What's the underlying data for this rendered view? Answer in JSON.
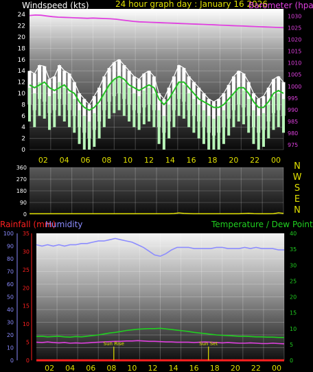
{
  "header": {
    "wind_title": "Windspeed (kts)",
    "graph_title": "24 hour graph day : January 16 2026",
    "baro_title": "Barometer (hpa)"
  },
  "colors": {
    "background": "#000000",
    "wind_gust": "#ffffff",
    "wind_speed": "#b8f5b8",
    "wind_avg": "#22c022",
    "barometer": "#e040e0",
    "direction": "#e0e000",
    "rain": "#ff2020",
    "humidity": "#8c8cff",
    "temperature": "#20d020",
    "dewpoint": "#e040e0",
    "sun": "#e0e000",
    "xtick": "#e0e000"
  },
  "chart_data": [
    {
      "id": "wind_baro",
      "type": "line",
      "title": "24 hour graph day : January 16 2026",
      "x_ticks": [
        "02",
        "04",
        "06",
        "08",
        "10",
        "12",
        "14",
        "16",
        "18",
        "20",
        "22",
        "00"
      ],
      "y_left": {
        "label": "Windspeed (kts)",
        "ticks": [
          0,
          2,
          4,
          6,
          8,
          10,
          12,
          14,
          16,
          18,
          20,
          22,
          24
        ],
        "range": [
          0,
          25
        ]
      },
      "y_right": {
        "label": "Barometer (hpa)",
        "ticks": [
          975,
          980,
          985,
          990,
          995,
          1000,
          1005,
          1010,
          1015,
          1020,
          1025,
          1030
        ],
        "range": [
          973,
          1033
        ]
      },
      "grid": true,
      "series": [
        {
          "name": "Wind gust",
          "axis": "left",
          "style": "band",
          "values": [
            14,
            13.5,
            15,
            14.8,
            12.5,
            13,
            15,
            14,
            13.5,
            12,
            10,
            9,
            8,
            9.5,
            11,
            13,
            14.5,
            15.5,
            16,
            15,
            14,
            13,
            12.5,
            13.5,
            14,
            13,
            10,
            9,
            11,
            13,
            15,
            14.5,
            13,
            12,
            11,
            10,
            9,
            8.5,
            9,
            10,
            11.5,
            13,
            14,
            13.5,
            12,
            10,
            9,
            9.5,
            11,
            12.5,
            13,
            12
          ]
        },
        {
          "name": "Wind speed",
          "axis": "left",
          "style": "band",
          "values": [
            11,
            10,
            12,
            11.5,
            9.5,
            10,
            12,
            11,
            10,
            9,
            7,
            6,
            5,
            6.5,
            8,
            10,
            11.5,
            12.5,
            13,
            12,
            11,
            10,
            9.5,
            10.5,
            11,
            10,
            7,
            6,
            8,
            10,
            12,
            11.5,
            10,
            9,
            8,
            7,
            6,
            5.5,
            6,
            7,
            8.5,
            10,
            11,
            10.5,
            9,
            7,
            6,
            6.5,
            8,
            9.5,
            10,
            9
          ]
        },
        {
          "name": "Wind average",
          "axis": "left",
          "style": "line",
          "values": [
            11.5,
            11,
            11.5,
            12,
            11,
            10.5,
            11,
            11.5,
            10.5,
            10,
            8.5,
            7.5,
            7,
            7.5,
            8.5,
            10,
            11.5,
            12.5,
            13,
            12.5,
            11.5,
            11,
            10.5,
            11,
            11.5,
            11,
            9,
            8,
            9,
            10.5,
            12,
            12,
            11,
            10,
            9,
            8.5,
            8,
            7.5,
            7.5,
            8,
            9,
            10,
            11,
            11,
            10,
            8.5,
            7.5,
            7.5,
            8.5,
            10,
            10.5,
            10
          ]
        },
        {
          "name": "Barometer",
          "axis": "right",
          "style": "line",
          "values": [
            1030.2,
            1030.4,
            1030.3,
            1030,
            1029.7,
            1029.5,
            1029.4,
            1029.3,
            1029.2,
            1029.1,
            1029,
            1029.1,
            1029,
            1028.9,
            1028.8,
            1028.6,
            1028.3,
            1028,
            1027.7,
            1027.5,
            1027.4,
            1027.3,
            1027.2,
            1027.1,
            1027,
            1026.9,
            1026.8,
            1026.7,
            1026.6,
            1026.5,
            1026.4,
            1026.3,
            1026.2,
            1026.1,
            1026,
            1025.9,
            1025.8,
            1025.7,
            1025.6,
            1025.5,
            1025.4,
            1025.3,
            1025.2,
            1025.1,
            1025
          ]
        }
      ]
    },
    {
      "id": "direction",
      "type": "line",
      "x_ticks": [],
      "y_left": {
        "ticks": [
          0,
          90,
          180,
          270,
          360
        ],
        "range": [
          0,
          360
        ]
      },
      "compass": [
        "N",
        "W",
        "S",
        "E",
        "N"
      ],
      "grid": true,
      "series": [
        {
          "name": "Wind direction",
          "axis": "left",
          "values": [
            3,
            3,
            3,
            3,
            3,
            3,
            3,
            3,
            3,
            3,
            3,
            3,
            3,
            3,
            3,
            3,
            3,
            3,
            3,
            3,
            3,
            3,
            3,
            3,
            3,
            3,
            3,
            3,
            3,
            5,
            9,
            6,
            4,
            3,
            3,
            3,
            3,
            3,
            3,
            3,
            3,
            3,
            3,
            5,
            7,
            4,
            3,
            3,
            3,
            4,
            10,
            6
          ]
        }
      ]
    },
    {
      "id": "rain_hum_temp",
      "type": "line",
      "x_ticks": [
        "02",
        "04",
        "06",
        "08",
        "10",
        "12",
        "14",
        "16",
        "18",
        "20",
        "22",
        "00"
      ],
      "y_left_outer": {
        "label": "Rainfall (mm)",
        "ticks": [
          0,
          5,
          10,
          15,
          20,
          25,
          30,
          35
        ],
        "range": [
          0,
          35
        ]
      },
      "y_left_inner": {
        "label": "Humidity",
        "ticks": [
          0,
          10,
          20,
          30,
          40,
          50,
          60,
          70,
          80,
          90,
          100
        ],
        "range": [
          0,
          100
        ]
      },
      "y_right": {
        "label": "Temperature / Dew Point (c)",
        "ticks": [
          0,
          5,
          10,
          15,
          20,
          25,
          30,
          35,
          40
        ],
        "range": [
          0,
          40
        ]
      },
      "grid": true,
      "annotations": [
        {
          "label": "Sun Rise",
          "time": "07:30"
        },
        {
          "label": "Sun Set",
          "time": "16:40"
        }
      ],
      "series": [
        {
          "name": "Humidity",
          "axis": "left_inner",
          "values": [
            91,
            90,
            91,
            90,
            91,
            90,
            91,
            91,
            92,
            92,
            93,
            94,
            94,
            95,
            96,
            95,
            94,
            93,
            91,
            89,
            86,
            83,
            82,
            84,
            87,
            89,
            89,
            89,
            88,
            88,
            88,
            88,
            89,
            89,
            88,
            88,
            88,
            89,
            88,
            89,
            88,
            88,
            88,
            87,
            87
          ]
        },
        {
          "name": "Temperature",
          "axis": "right",
          "values": [
            7.5,
            7.6,
            7.4,
            7.5,
            7.6,
            7.4,
            7.3,
            7.5,
            7.4,
            7.6,
            7.8,
            8.0,
            8.3,
            8.6,
            8.8,
            9.1,
            9.4,
            9.6,
            9.8,
            9.9,
            10.0,
            10.0,
            10.1,
            9.9,
            9.7,
            9.5,
            9.3,
            9.1,
            8.8,
            8.6,
            8.4,
            8.2,
            8.0,
            7.9,
            7.8,
            7.7,
            7.6,
            7.6,
            7.5,
            7.4,
            7.4,
            7.3,
            7.3,
            7.2,
            7.2
          ]
        },
        {
          "name": "Dew Point",
          "axis": "right",
          "values": [
            5.7,
            5.6,
            5.8,
            5.6,
            5.5,
            5.6,
            5.4,
            5.5,
            5.4,
            5.5,
            5.6,
            5.7,
            5.8,
            5.9,
            6.0,
            6.0,
            6.1,
            6.1,
            6.2,
            6.1,
            6.0,
            6.0,
            5.9,
            5.8,
            5.8,
            5.7,
            5.7,
            5.7,
            5.6,
            5.7,
            5.8,
            5.7,
            5.6,
            5.5,
            5.6,
            5.5,
            5.4,
            5.4,
            5.5,
            5.4,
            5.3,
            5.3,
            5.4,
            5.3,
            5.2
          ]
        },
        {
          "name": "Rainfall",
          "axis": "left_outer",
          "values": [
            0,
            0,
            0,
            0,
            0,
            0,
            0,
            0,
            0,
            0,
            0,
            0,
            0,
            0,
            0,
            0,
            0,
            0,
            0,
            0,
            0,
            0,
            0,
            0,
            0,
            0,
            0,
            0,
            0,
            0,
            0,
            0,
            0,
            0,
            0,
            0,
            0,
            0,
            0,
            0,
            0,
            0,
            0,
            0,
            0
          ]
        }
      ]
    }
  ]
}
